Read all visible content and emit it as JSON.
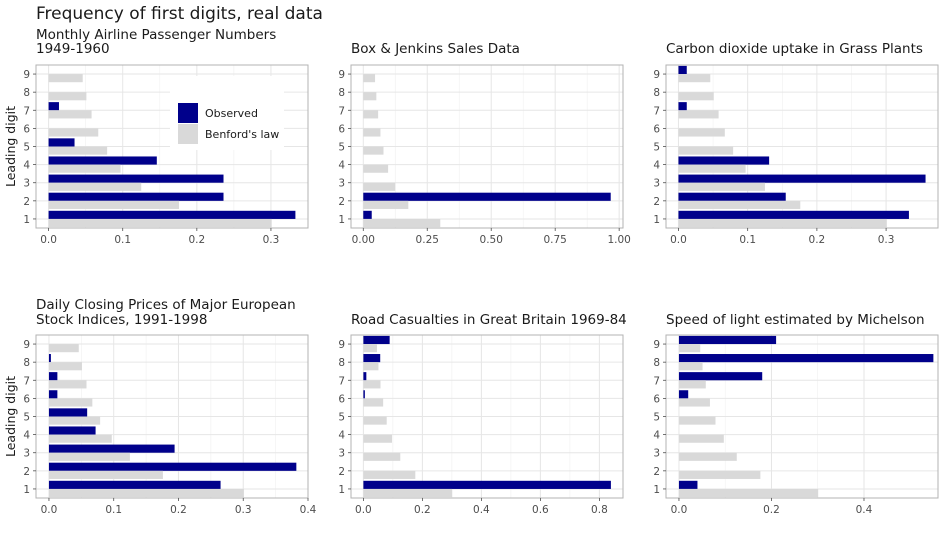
{
  "title": "Frequency of first digits, real data",
  "y_label": "Leading digit",
  "legend": {
    "placement": "inside top-right of first panel",
    "items": [
      {
        "label": "Observed",
        "color": "#00008B"
      },
      {
        "label": "Benford's law",
        "color": "#D9D9D9"
      }
    ]
  },
  "colors": {
    "observed": "#00008B",
    "benford": "#D9D9D9",
    "grid": "#E6E6E6",
    "panel_border": "#B3B3B3"
  },
  "chart_data": [
    {
      "type": "bar",
      "orientation": "horizontal",
      "title": "Monthly Airline Passenger Numbers\n1949-1960",
      "categories": [
        "1",
        "2",
        "3",
        "4",
        "5",
        "6",
        "7",
        "8",
        "9"
      ],
      "series": [
        {
          "name": "Observed",
          "values": [
            0.333,
            0.236,
            0.236,
            0.146,
            0.035,
            0,
            0.014,
            0,
            0
          ]
        },
        {
          "name": "Benford's law",
          "values": [
            0.301,
            0.176,
            0.125,
            0.097,
            0.079,
            0.067,
            0.058,
            0.051,
            0.046
          ]
        }
      ],
      "xlim": [
        -0.017,
        0.35
      ],
      "xticks": [
        0,
        0.1,
        0.2,
        0.3
      ],
      "xtick_labels": [
        "0.0",
        "0.1",
        "0.2",
        "0.3"
      ],
      "ylabel": "Leading digit",
      "grid": true
    },
    {
      "type": "bar",
      "orientation": "horizontal",
      "title": "Box & Jenkins Sales Data",
      "categories": [
        "1",
        "2",
        "3",
        "4",
        "5",
        "6",
        "7",
        "8",
        "9"
      ],
      "series": [
        {
          "name": "Observed",
          "values": [
            0.033,
            0.967,
            0,
            0,
            0,
            0,
            0,
            0,
            0
          ]
        },
        {
          "name": "Benford's law",
          "values": [
            0.301,
            0.176,
            0.125,
            0.097,
            0.079,
            0.067,
            0.058,
            0.051,
            0.046
          ]
        }
      ],
      "xlim": [
        -0.048,
        1.015
      ],
      "xticks": [
        0,
        0.25,
        0.5,
        0.75,
        1.0
      ],
      "xtick_labels": [
        "0.00",
        "0.25",
        "0.50",
        "0.75",
        "1.00"
      ],
      "grid": true
    },
    {
      "type": "bar",
      "orientation": "horizontal",
      "title": "Carbon dioxide uptake in Grass Plants",
      "categories": [
        "1",
        "2",
        "3",
        "4",
        "5",
        "6",
        "7",
        "8",
        "9"
      ],
      "series": [
        {
          "name": "Observed",
          "values": [
            0.333,
            0.155,
            0.357,
            0.131,
            0,
            0,
            0.012,
            0,
            0.012
          ]
        },
        {
          "name": "Benford's law",
          "values": [
            0.301,
            0.176,
            0.125,
            0.097,
            0.079,
            0.067,
            0.058,
            0.051,
            0.046
          ]
        }
      ],
      "xlim": [
        -0.018,
        0.375
      ],
      "xticks": [
        0,
        0.1,
        0.2,
        0.3
      ],
      "xtick_labels": [
        "0.0",
        "0.1",
        "0.2",
        "0.3"
      ],
      "grid": true
    },
    {
      "type": "bar",
      "orientation": "horizontal",
      "title": "Daily Closing Prices of Major European\nStock Indices, 1991-1998",
      "categories": [
        "1",
        "2",
        "3",
        "4",
        "5",
        "6",
        "7",
        "8",
        "9"
      ],
      "series": [
        {
          "name": "Observed",
          "values": [
            0.265,
            0.382,
            0.194,
            0.072,
            0.059,
            0.013,
            0.013,
            0.003,
            0
          ]
        },
        {
          "name": "Benford's law",
          "values": [
            0.301,
            0.176,
            0.125,
            0.097,
            0.079,
            0.067,
            0.058,
            0.051,
            0.046
          ]
        }
      ],
      "xlim": [
        -0.02,
        0.4
      ],
      "xticks": [
        0,
        0.1,
        0.2,
        0.3,
        0.4
      ],
      "xtick_labels": [
        "0.0",
        "0.1",
        "0.2",
        "0.3",
        "0.4"
      ],
      "ylabel": "Leading digit",
      "grid": true
    },
    {
      "type": "bar",
      "orientation": "horizontal",
      "title": "Road Casualties in Great Britain 1969-84",
      "categories": [
        "1",
        "2",
        "3",
        "4",
        "5",
        "6",
        "7",
        "8",
        "9"
      ],
      "series": [
        {
          "name": "Observed",
          "values": [
            0.839,
            0,
            0,
            0,
            0,
            0.005,
            0.01,
            0.057,
            0.089
          ]
        },
        {
          "name": "Benford's law",
          "values": [
            0.301,
            0.176,
            0.125,
            0.097,
            0.079,
            0.067,
            0.058,
            0.051,
            0.046
          ]
        }
      ],
      "xlim": [
        -0.042,
        0.88
      ],
      "xticks": [
        0,
        0.2,
        0.4,
        0.6,
        0.8
      ],
      "xtick_labels": [
        "0.0",
        "0.2",
        "0.4",
        "0.6",
        "0.8"
      ],
      "grid": true
    },
    {
      "type": "bar",
      "orientation": "horizontal",
      "title": "Speed of light estimated by Michelson",
      "categories": [
        "1",
        "2",
        "3",
        "4",
        "5",
        "6",
        "7",
        "8",
        "9"
      ],
      "series": [
        {
          "name": "Observed",
          "values": [
            0.04,
            0,
            0,
            0,
            0,
            0.02,
            0.18,
            0.55,
            0.21
          ]
        },
        {
          "name": "Benford's law",
          "values": [
            0.301,
            0.176,
            0.125,
            0.097,
            0.079,
            0.067,
            0.058,
            0.051,
            0.046
          ]
        }
      ],
      "xlim": [
        -0.028,
        0.56
      ],
      "xticks": [
        0,
        0.2,
        0.4
      ],
      "xtick_labels": [
        "0.0",
        "0.2",
        "0.4"
      ],
      "grid": true
    }
  ]
}
